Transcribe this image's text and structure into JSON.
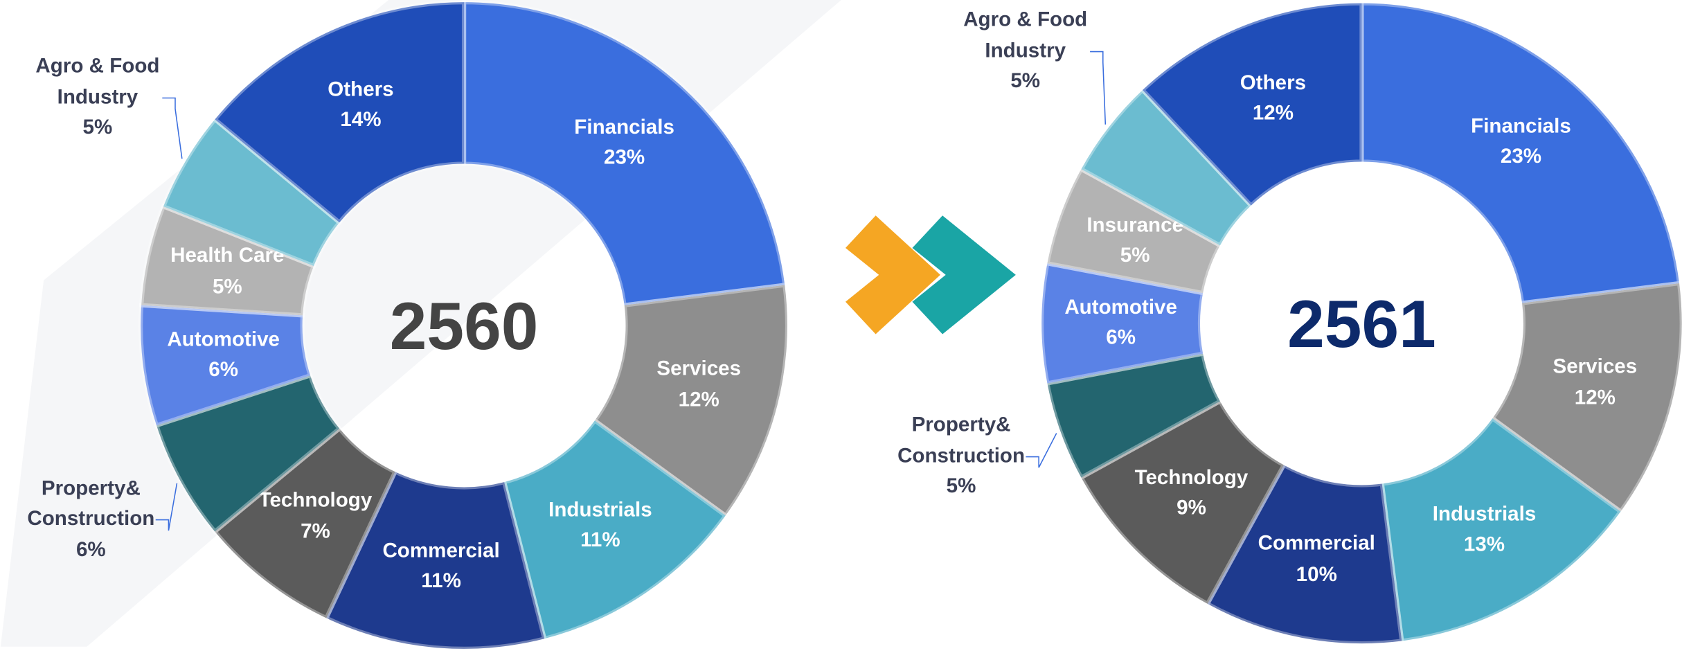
{
  "chart_data": [
    {
      "type": "pie",
      "title": "2560",
      "categories": [
        "Financials",
        "Services",
        "Industrials",
        "Commercial",
        "Technology",
        "Property& Construction",
        "Automotive",
        "Health Care",
        "Agro & Food Industry",
        "Others"
      ],
      "values": [
        23,
        12,
        11,
        11,
        7,
        6,
        6,
        5,
        5,
        14
      ],
      "value_labels": [
        "23%",
        "12%",
        "11%",
        "11%",
        "7%",
        "6%",
        "6%",
        "5%",
        "5%",
        "14%"
      ],
      "colors": [
        "#3a6ede",
        "#8e8e8e",
        "#4aacc6",
        "#1e3a8e",
        "#5b5b5b",
        "#23656f",
        "#5a82e6",
        "#b3b3b3",
        "#6bbcd0",
        "#1f4db8"
      ]
    },
    {
      "type": "pie",
      "title": "2561",
      "categories": [
        "Financials",
        "Services",
        "Industrials",
        "Commercial",
        "Technology",
        "Property& Construction",
        "Automotive",
        "Insurance",
        "Agro & Food Industry",
        "Others"
      ],
      "values": [
        23,
        12,
        13,
        10,
        9,
        5,
        6,
        5,
        5,
        12
      ],
      "value_labels": [
        "23%",
        "12%",
        "13%",
        "10%",
        "9%",
        "5%",
        "6%",
        "5%",
        "5%",
        "12%"
      ],
      "colors": [
        "#3a6ede",
        "#8e8e8e",
        "#4aacc6",
        "#1e3a8e",
        "#5b5b5b",
        "#23656f",
        "#5a82e6",
        "#b3b3b3",
        "#6bbcd0",
        "#1f4db8"
      ]
    }
  ]
}
